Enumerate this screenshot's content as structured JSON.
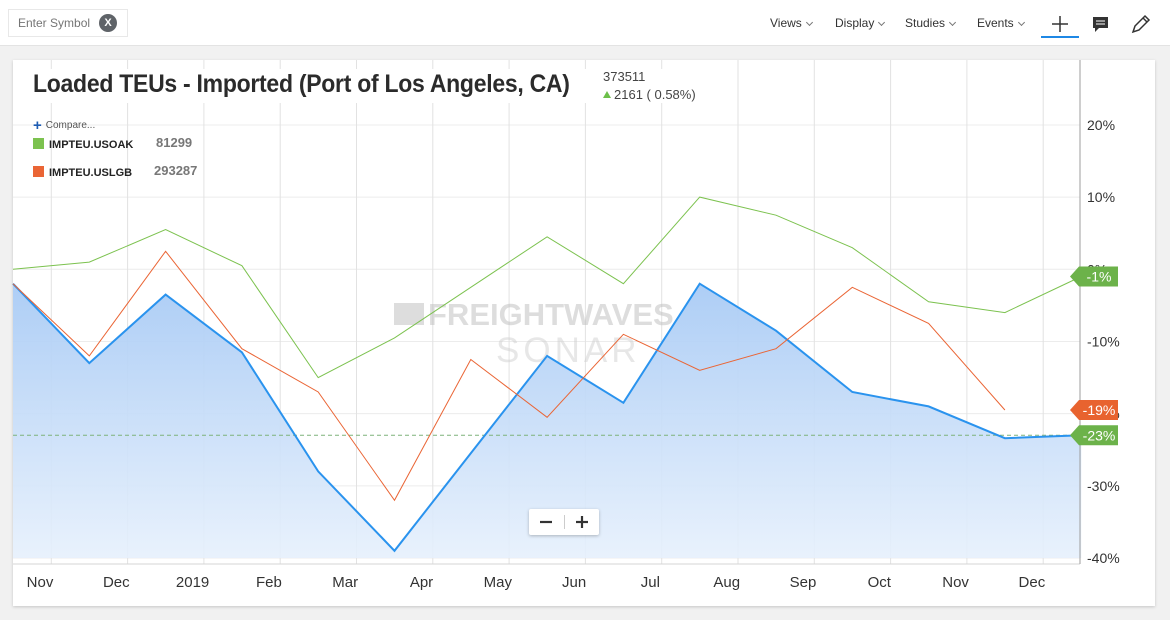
{
  "toolbar": {
    "symbol_placeholder": "Enter Symbol",
    "clear_label": "X",
    "menus": [
      "Views",
      "Display",
      "Studies",
      "Events"
    ]
  },
  "header": {
    "title": "Loaded TEUs - Imported (Port of Los Angeles, CA)",
    "last_value": "373511",
    "change": "2161 ( 0.58%)"
  },
  "legend": {
    "compare_label": "Compare...",
    "items": [
      {
        "symbol": "IMPTEU.USOAK",
        "value": "81299",
        "color": "#7cc24f"
      },
      {
        "symbol": "IMPTEU.USLGB",
        "value": "293287",
        "color": "#ea6535"
      }
    ]
  },
  "watermark": {
    "line1": "FREIGHTWAVES",
    "line2": "SONAR"
  },
  "zoom": {
    "minus": "−",
    "plus": "+"
  },
  "colors": {
    "main": "#2a93ee",
    "oak": "#7cc24f",
    "lgb": "#ea6535",
    "tag_main": "#6cb24a",
    "tag_oak": "#6cb24a",
    "tag_lgb": "#e8632f"
  },
  "chart_data": {
    "type": "line",
    "title": "Loaded TEUs - Imported (Port of Los Angeles, CA)",
    "x_tick_labels": [
      "Nov",
      "Dec",
      "2019",
      "Feb",
      "Mar",
      "Apr",
      "May",
      "Jun",
      "Jul",
      "Aug",
      "Sep",
      "Oct",
      "Nov",
      "Dec"
    ],
    "x": [
      "2018-10",
      "2018-11",
      "2018-12",
      "2019-01",
      "2019-02",
      "2019-03",
      "2019-04",
      "2019-05",
      "2019-06",
      "2019-07",
      "2019-08",
      "2019-09",
      "2019-10",
      "2019-11",
      "2019-12"
    ],
    "y_ticks": [
      20,
      10,
      0,
      -10,
      -20,
      -30,
      -40
    ],
    "y_tick_labels": [
      "20%",
      "10%",
      "0%",
      "-10%",
      "-20%",
      "-30%",
      "-40%"
    ],
    "ylim": [
      -40,
      29
    ],
    "series": [
      {
        "name": "Loaded TEUs - Imported (Port of Los Angeles, CA)",
        "fill": true,
        "values": [
          -2,
          -13,
          -3.5,
          -11.5,
          -28,
          -39,
          -25.5,
          -12,
          -18.5,
          -2,
          -8.5,
          -17,
          -19,
          -23.4,
          -23
        ],
        "end_label": "-23%"
      },
      {
        "name": "IMPTEU.USOAK",
        "values": [
          0,
          1,
          5.5,
          0.5,
          -15,
          -9.5,
          -2.5,
          4.5,
          -2,
          10,
          7.5,
          3,
          -4.5,
          -6,
          -1
        ],
        "end_label": "-1%"
      },
      {
        "name": "IMPTEU.USLGB",
        "values": [
          -2,
          -12,
          2.5,
          -11,
          -17,
          -32,
          -12.5,
          -20.5,
          -9,
          -14,
          -11,
          -2.5,
          -7.5,
          -19.5,
          null
        ],
        "end_label": "-19%"
      }
    ],
    "reference_line": -23,
    "grid": true,
    "legend_position": "top-left"
  }
}
